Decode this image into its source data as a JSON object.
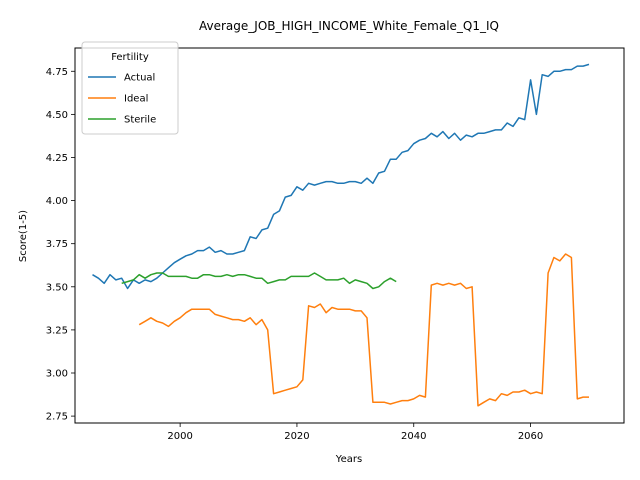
{
  "chart_data": {
    "type": "line",
    "title": "Average_JOB_HIGH_INCOME_White_Female_Q1_IQ",
    "xlabel": "Years",
    "ylabel": "Score(1-5)",
    "xlim": [
      1982,
      2076
    ],
    "ylim": [
      2.71,
      4.885
    ],
    "xticks": [
      2000,
      2020,
      2040,
      2060
    ],
    "yticks": [
      2.75,
      3.0,
      3.25,
      3.5,
      3.75,
      4.0,
      4.25,
      4.5,
      4.75
    ],
    "xtick_labels": [
      "2000",
      "2020",
      "2040",
      "2060"
    ],
    "ytick_labels": [
      "2.75",
      "3.00",
      "3.25",
      "3.50",
      "3.75",
      "4.00",
      "4.25",
      "4.50",
      "4.75"
    ],
    "grid": false,
    "legend": {
      "title": "Fertility",
      "position": "top-left"
    },
    "series": [
      {
        "name": "Actual",
        "color": "#1f77b4",
        "x": [
          1985,
          1986,
          1987,
          1988,
          1989,
          1990,
          1991,
          1992,
          1993,
          1994,
          1995,
          1996,
          1997,
          1998,
          1999,
          2000,
          2001,
          2002,
          2003,
          2004,
          2005,
          2006,
          2007,
          2008,
          2009,
          2010,
          2011,
          2012,
          2013,
          2014,
          2015,
          2016,
          2017,
          2018,
          2019,
          2020,
          2021,
          2022,
          2023,
          2024,
          2025,
          2026,
          2027,
          2028,
          2029,
          2030,
          2031,
          2032,
          2033,
          2034,
          2035,
          2036,
          2037,
          2038,
          2039,
          2040,
          2041,
          2042,
          2043,
          2044,
          2045,
          2046,
          2047,
          2048,
          2049,
          2050,
          2051,
          2052,
          2053,
          2054,
          2055,
          2056,
          2057,
          2058,
          2059,
          2060,
          2061,
          2062,
          2063,
          2064,
          2065,
          2066,
          2067,
          2068,
          2069,
          2070
        ],
        "values": [
          3.57,
          3.55,
          3.52,
          3.57,
          3.54,
          3.55,
          3.49,
          3.54,
          3.52,
          3.54,
          3.53,
          3.55,
          3.58,
          3.61,
          3.64,
          3.66,
          3.68,
          3.69,
          3.71,
          3.71,
          3.73,
          3.7,
          3.71,
          3.69,
          3.69,
          3.7,
          3.71,
          3.79,
          3.78,
          3.83,
          3.84,
          3.92,
          3.94,
          4.02,
          4.03,
          4.08,
          4.06,
          4.1,
          4.09,
          4.1,
          4.11,
          4.11,
          4.1,
          4.1,
          4.11,
          4.11,
          4.1,
          4.13,
          4.1,
          4.16,
          4.17,
          4.24,
          4.24,
          4.28,
          4.29,
          4.33,
          4.35,
          4.36,
          4.39,
          4.37,
          4.4,
          4.36,
          4.39,
          4.35,
          4.38,
          4.37,
          4.39,
          4.39,
          4.4,
          4.41,
          4.41,
          4.45,
          4.43,
          4.48,
          4.47,
          4.7,
          4.5,
          4.73,
          4.72,
          4.75,
          4.75,
          4.76,
          4.76,
          4.78,
          4.78,
          4.79
        ]
      },
      {
        "name": "Ideal",
        "color": "#ff7f0e",
        "x": [
          1993,
          1994,
          1995,
          1996,
          1997,
          1998,
          1999,
          2000,
          2001,
          2002,
          2003,
          2004,
          2005,
          2006,
          2007,
          2008,
          2009,
          2010,
          2011,
          2012,
          2013,
          2014,
          2015,
          2016,
          2017,
          2018,
          2019,
          2020,
          2021,
          2022,
          2023,
          2024,
          2025,
          2026,
          2027,
          2028,
          2029,
          2030,
          2031,
          2032,
          2033,
          2034,
          2035,
          2036,
          2037,
          2038,
          2039,
          2040,
          2041,
          2042,
          2043,
          2044,
          2045,
          2046,
          2047,
          2048,
          2049,
          2050,
          2051,
          2052,
          2053,
          2054,
          2055,
          2056,
          2057,
          2058,
          2059,
          2060,
          2061,
          2062,
          2063,
          2064,
          2065,
          2066,
          2067,
          2068,
          2069,
          2070
        ],
        "values": [
          3.28,
          3.3,
          3.32,
          3.3,
          3.29,
          3.27,
          3.3,
          3.32,
          3.35,
          3.37,
          3.37,
          3.37,
          3.37,
          3.34,
          3.33,
          3.32,
          3.31,
          3.31,
          3.3,
          3.32,
          3.28,
          3.31,
          3.25,
          2.88,
          2.89,
          2.9,
          2.91,
          2.92,
          2.96,
          3.39,
          3.38,
          3.4,
          3.35,
          3.38,
          3.37,
          3.37,
          3.37,
          3.36,
          3.36,
          3.32,
          2.83,
          2.83,
          2.83,
          2.82,
          2.83,
          2.84,
          2.84,
          2.85,
          2.87,
          2.86,
          3.51,
          3.52,
          3.51,
          3.52,
          3.51,
          3.52,
          3.49,
          3.5,
          2.81,
          2.83,
          2.85,
          2.84,
          2.88,
          2.87,
          2.89,
          2.89,
          2.9,
          2.88,
          2.89,
          2.88,
          3.58,
          3.67,
          3.65,
          3.69,
          3.67,
          2.85,
          2.86,
          2.86
        ]
      },
      {
        "name": "Sterile",
        "color": "#2ca02c",
        "x": [
          1990,
          1991,
          1992,
          1993,
          1994,
          1995,
          1996,
          1997,
          1998,
          1999,
          2000,
          2001,
          2002,
          2003,
          2004,
          2005,
          2006,
          2007,
          2008,
          2009,
          2010,
          2011,
          2012,
          2013,
          2014,
          2015,
          2016,
          2017,
          2018,
          2019,
          2020,
          2021,
          2022,
          2023,
          2024,
          2025,
          2026,
          2027,
          2028,
          2029,
          2030,
          2031,
          2032,
          2033,
          2034,
          2035,
          2036,
          2037
        ],
        "values": [
          3.52,
          3.53,
          3.54,
          3.57,
          3.55,
          3.57,
          3.58,
          3.58,
          3.56,
          3.56,
          3.56,
          3.56,
          3.55,
          3.55,
          3.57,
          3.57,
          3.56,
          3.56,
          3.57,
          3.56,
          3.57,
          3.57,
          3.56,
          3.55,
          3.55,
          3.52,
          3.53,
          3.54,
          3.54,
          3.56,
          3.56,
          3.56,
          3.56,
          3.58,
          3.56,
          3.54,
          3.54,
          3.54,
          3.55,
          3.52,
          3.54,
          3.53,
          3.52,
          3.49,
          3.5,
          3.53,
          3.55,
          3.53
        ]
      }
    ]
  }
}
